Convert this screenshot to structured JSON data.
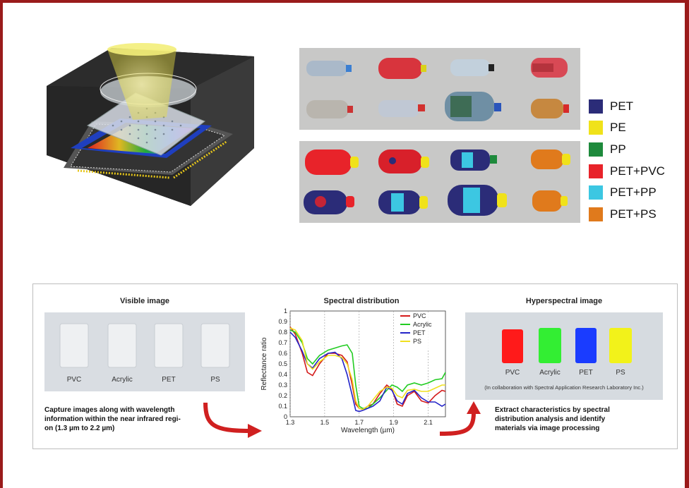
{
  "legend": [
    {
      "label": "PET",
      "color": "#2b2c78"
    },
    {
      "label": "PE",
      "color": "#f0e21a"
    },
    {
      "label": "PP",
      "color": "#1e8a3c"
    },
    {
      "label": "PET+PVC",
      "color": "#e8232a"
    },
    {
      "label": "PET+PP",
      "color": "#3cc7e2"
    },
    {
      "label": "PET+PS",
      "color": "#e07a1c"
    }
  ],
  "panel": {
    "visible_title": "Visible image",
    "spectral_title": "Spectral distribution",
    "hyper_title": "Hyperspectral image",
    "materials": [
      "PVC",
      "Acrylic",
      "PET",
      "PS"
    ],
    "left_caption": [
      "Capture images along with wavelength",
      "information within the near infrared regi-",
      "on (1.3 µm to 2.2 µm)"
    ],
    "right_caption": [
      "Extract characteristics by spectral",
      "distribution analysis and identify",
      "materials via image processing"
    ],
    "collab": "(In collaboration with Spectral Application Research Laboratory Inc.)",
    "hyper_colors": [
      "#ff1a1a",
      "#33ee33",
      "#1a3cff",
      "#f2f21a"
    ]
  },
  "chart_data": {
    "type": "line",
    "title": "Spectral distribution",
    "xlabel": "Wavelength (µm)",
    "ylabel": "Reflectance ratio",
    "xlim": [
      1.3,
      2.2
    ],
    "ylim": [
      0,
      1
    ],
    "xticks": [
      "1.3",
      "1.5",
      "1.7",
      "1.9",
      "2.1"
    ],
    "yticks": [
      "0",
      "0.1",
      "0.2",
      "0.3",
      "0.4",
      "0.5",
      "0.6",
      "0.7",
      "0.8",
      "0.9",
      "1"
    ],
    "legend_position": "top-right",
    "grid": true,
    "series": [
      {
        "name": "PVC",
        "color": "#d41a1a",
        "x": [
          1.3,
          1.33,
          1.37,
          1.4,
          1.43,
          1.47,
          1.52,
          1.56,
          1.6,
          1.63,
          1.66,
          1.68,
          1.7,
          1.72,
          1.75,
          1.78,
          1.82,
          1.86,
          1.89,
          1.92,
          1.95,
          1.98,
          2.02,
          2.06,
          2.1,
          2.14,
          2.18,
          2.2
        ],
        "y": [
          0.85,
          0.78,
          0.6,
          0.42,
          0.39,
          0.5,
          0.6,
          0.6,
          0.58,
          0.52,
          0.3,
          0.12,
          0.08,
          0.07,
          0.1,
          0.12,
          0.22,
          0.3,
          0.26,
          0.12,
          0.1,
          0.2,
          0.24,
          0.15,
          0.13,
          0.2,
          0.25,
          0.24
        ]
      },
      {
        "name": "Acrylic",
        "color": "#22cc22",
        "x": [
          1.3,
          1.33,
          1.37,
          1.4,
          1.43,
          1.47,
          1.52,
          1.56,
          1.6,
          1.63,
          1.66,
          1.68,
          1.7,
          1.72,
          1.75,
          1.78,
          1.82,
          1.86,
          1.89,
          1.92,
          1.95,
          1.98,
          2.02,
          2.06,
          2.1,
          2.14,
          2.18,
          2.2
        ],
        "y": [
          0.82,
          0.8,
          0.7,
          0.55,
          0.5,
          0.58,
          0.63,
          0.65,
          0.67,
          0.68,
          0.6,
          0.3,
          0.1,
          0.08,
          0.08,
          0.12,
          0.18,
          0.25,
          0.3,
          0.28,
          0.24,
          0.3,
          0.32,
          0.3,
          0.32,
          0.35,
          0.36,
          0.42
        ]
      },
      {
        "name": "PET",
        "color": "#2424c8",
        "x": [
          1.3,
          1.33,
          1.37,
          1.4,
          1.43,
          1.47,
          1.52,
          1.56,
          1.6,
          1.63,
          1.66,
          1.68,
          1.7,
          1.72,
          1.75,
          1.78,
          1.82,
          1.86,
          1.89,
          1.92,
          1.95,
          1.98,
          2.02,
          2.06,
          2.1,
          2.14,
          2.18,
          2.2
        ],
        "y": [
          0.8,
          0.75,
          0.62,
          0.5,
          0.46,
          0.55,
          0.6,
          0.61,
          0.55,
          0.4,
          0.2,
          0.06,
          0.05,
          0.06,
          0.08,
          0.1,
          0.15,
          0.28,
          0.25,
          0.15,
          0.12,
          0.22,
          0.25,
          0.18,
          0.14,
          0.14,
          0.1,
          0.12
        ]
      },
      {
        "name": "PS",
        "color": "#f0e020",
        "x": [
          1.3,
          1.33,
          1.37,
          1.4,
          1.43,
          1.47,
          1.52,
          1.56,
          1.6,
          1.63,
          1.66,
          1.68,
          1.7,
          1.72,
          1.75,
          1.78,
          1.82,
          1.86,
          1.89,
          1.92,
          1.95,
          1.98,
          2.02,
          2.06,
          2.1,
          2.14,
          2.18,
          2.2
        ],
        "y": [
          0.84,
          0.82,
          0.72,
          0.5,
          0.45,
          0.52,
          0.58,
          0.58,
          0.56,
          0.5,
          0.35,
          0.15,
          0.08,
          0.07,
          0.1,
          0.16,
          0.24,
          0.28,
          0.27,
          0.2,
          0.18,
          0.25,
          0.26,
          0.24,
          0.24,
          0.27,
          0.3,
          0.3
        ]
      }
    ]
  }
}
